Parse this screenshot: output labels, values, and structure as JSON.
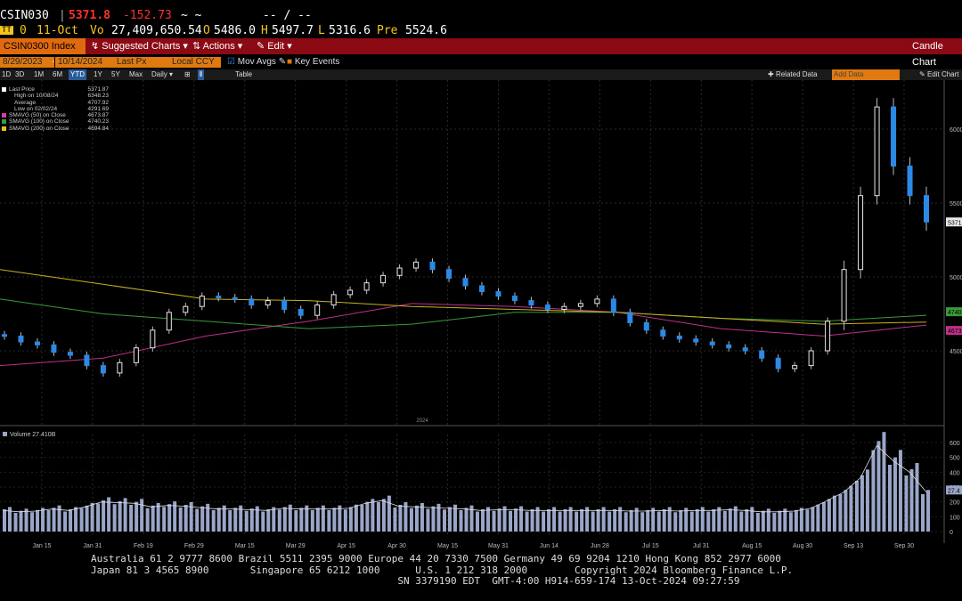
{
  "header": {
    "ticker": "CSIN030",
    "last_price": "5371.8",
    "change": "-152.73",
    "spark": "~ ~",
    "dashes": "-- / --"
  },
  "quote": {
    "tag": "0",
    "date": "11-Oct",
    "vol_label": "Vo",
    "volume": "27,409,650.54",
    "open_label": "O",
    "open": "5486.0",
    "high_label": "H",
    "high": "5497.7",
    "low_label": "L",
    "low": "5316.6",
    "prev_label": "Pre",
    "prev": "5524.6"
  },
  "menubar": {
    "security": "CSIN0300 Index",
    "suggested": "Suggested Charts",
    "actions": "Actions",
    "edit": "Edit",
    "chart_type": "Candle Chart"
  },
  "datebar": {
    "start": "8/29/2023",
    "end": "10/14/2024",
    "field": "Last Px",
    "currency": "Local CCY",
    "mov_avgs": "Mov Avgs",
    "key_events": "Key Events"
  },
  "periods": {
    "items": [
      "1D",
      "3D",
      "1M",
      "6M",
      "YTD",
      "1Y",
      "5Y",
      "Max",
      "Daily"
    ],
    "table": "Table",
    "related": "Related Data",
    "add_data": "Add Data",
    "edit_chart": "Edit Chart"
  },
  "legend": {
    "rows": [
      {
        "label": "Last Price",
        "value": "5371.87",
        "color": "#ffffff"
      },
      {
        "label": "High on 10/08/24",
        "value": "6348.23",
        "color": ""
      },
      {
        "label": "Average",
        "value": "4707.92",
        "color": ""
      },
      {
        "label": "Low on 02/02/24",
        "value": "4291.69",
        "color": ""
      },
      {
        "label": "SMAVG (50) on Close",
        "value": "4673.87",
        "color": "#d040a0"
      },
      {
        "label": "SMAVG (100) on Close",
        "value": "4740.23",
        "color": "#3a9a3a"
      },
      {
        "label": "SMAVG (200) on Close",
        "value": "4694.84",
        "color": "#e0c020"
      }
    ]
  },
  "volume_label": "Volume 27.410B",
  "axis": {
    "price_ticks": [
      "6000",
      "5500",
      "5000",
      "4500"
    ],
    "price_tags": {
      "last": "5371",
      "sma100": "4740",
      "sma50": "4673"
    },
    "vol_ticks": [
      "600",
      "500",
      "400",
      "300",
      "200",
      "100",
      "0"
    ],
    "vol_tag": "27.4",
    "x_ticks": [
      "Jan 15",
      "Jan 31",
      "Feb 19",
      "Feb 29",
      "Mar 15",
      "Mar 29",
      "Apr 15",
      "Apr 30",
      "May 15",
      "May 31",
      "Jun 14",
      "Jun 28",
      "Jul 15",
      "Jul 31",
      "Aug 15",
      "Aug 30",
      "Sep 13",
      "Sep 30"
    ],
    "year_label": "2024"
  },
  "footer": {
    "line1": "Australia 61 2 9777 8600 Brazil 5511 2395 9000 Europe 44 20 7330 7500 Germany 49 69 9204 1210 Hong Kong 852 2977 6000",
    "line2": "Japan 81 3 4565 8900       Singapore 65 6212 1000      U.S. 1 212 318 2000        Copyright 2024 Bloomberg Finance L.P.",
    "line3": "                                                    SN 3379190 EDT  GMT-4:00 H914-659-174 13-Oct-2024 09:27:59"
  },
  "colors": {
    "up": "#e8e8e8",
    "down": "#2a8ae6",
    "sma50": "#c0308c",
    "sma100": "#3a9a3a",
    "sma200": "#c8b020",
    "volume": "#9aa6c8"
  },
  "chart_data": {
    "type": "candlestick",
    "title": "CSIN0300 Index",
    "y_ticks": [
      4500,
      5000,
      5500,
      6000
    ],
    "x_ticks": [
      "Jan 15",
      "Jan 31",
      "Feb 19",
      "Feb 29",
      "Mar 15",
      "Mar 29",
      "Apr 15",
      "Apr 30",
      "May 15",
      "May 31",
      "Jun 14",
      "Jun 28",
      "Jul 15",
      "Jul 31",
      "Aug 15",
      "Aug 30",
      "Sep 13",
      "Sep 30"
    ],
    "close_series": {
      "name": "Last Price",
      "values": [
        4600,
        4560,
        4540,
        4490,
        4470,
        4400,
        4350,
        4420,
        4520,
        4640,
        4760,
        4800,
        4870,
        4860,
        4850,
        4810,
        4840,
        4780,
        4740,
        4810,
        4880,
        4910,
        4960,
        5010,
        5060,
        5100,
        5050,
        4990,
        4940,
        4900,
        4870,
        4840,
        4810,
        4780,
        4800,
        4820,
        4850,
        4760,
        4690,
        4640,
        4600,
        4580,
        4560,
        4540,
        4520,
        4500,
        4450,
        4380,
        4400,
        4500,
        4700,
        5050,
        5550,
        6150,
        5750,
        5550,
        5371.87
      ]
    },
    "sma_series": [
      {
        "name": "SMAVG (50) on Close",
        "values": [
          4400,
          4450,
          4600,
          4700,
          4820,
          4800,
          4760,
          4650,
          4600,
          4673.87
        ]
      },
      {
        "name": "SMAVG (100) on Close",
        "values": [
          4850,
          4750,
          4700,
          4650,
          4680,
          4760,
          4760,
          4720,
          4700,
          4740.23
        ]
      },
      {
        "name": "SMAVG (200) on Close",
        "values": [
          5050,
          4950,
          4850,
          4840,
          4800,
          4780,
          4760,
          4720,
          4680,
          4694.84
        ]
      }
    ],
    "volume_values": [
      150,
      140,
      145,
      160,
      150,
      175,
      210,
      205,
      200,
      175,
      185,
      180,
      170,
      160,
      160,
      155,
      150,
      165,
      160,
      160,
      160,
      165,
      200,
      220,
      180,
      175,
      170,
      165,
      160,
      150,
      155,
      155,
      150,
      150,
      150,
      150,
      150,
      150,
      145,
      145,
      150,
      145,
      150,
      150,
      155,
      150,
      140,
      140,
      145,
      165,
      220,
      280,
      380,
      610,
      500,
      420,
      280
    ],
    "y_ticks_volume": [
      0,
      100,
      200,
      300,
      400,
      500,
      600
    ],
    "last_volume": "27.410B"
  }
}
